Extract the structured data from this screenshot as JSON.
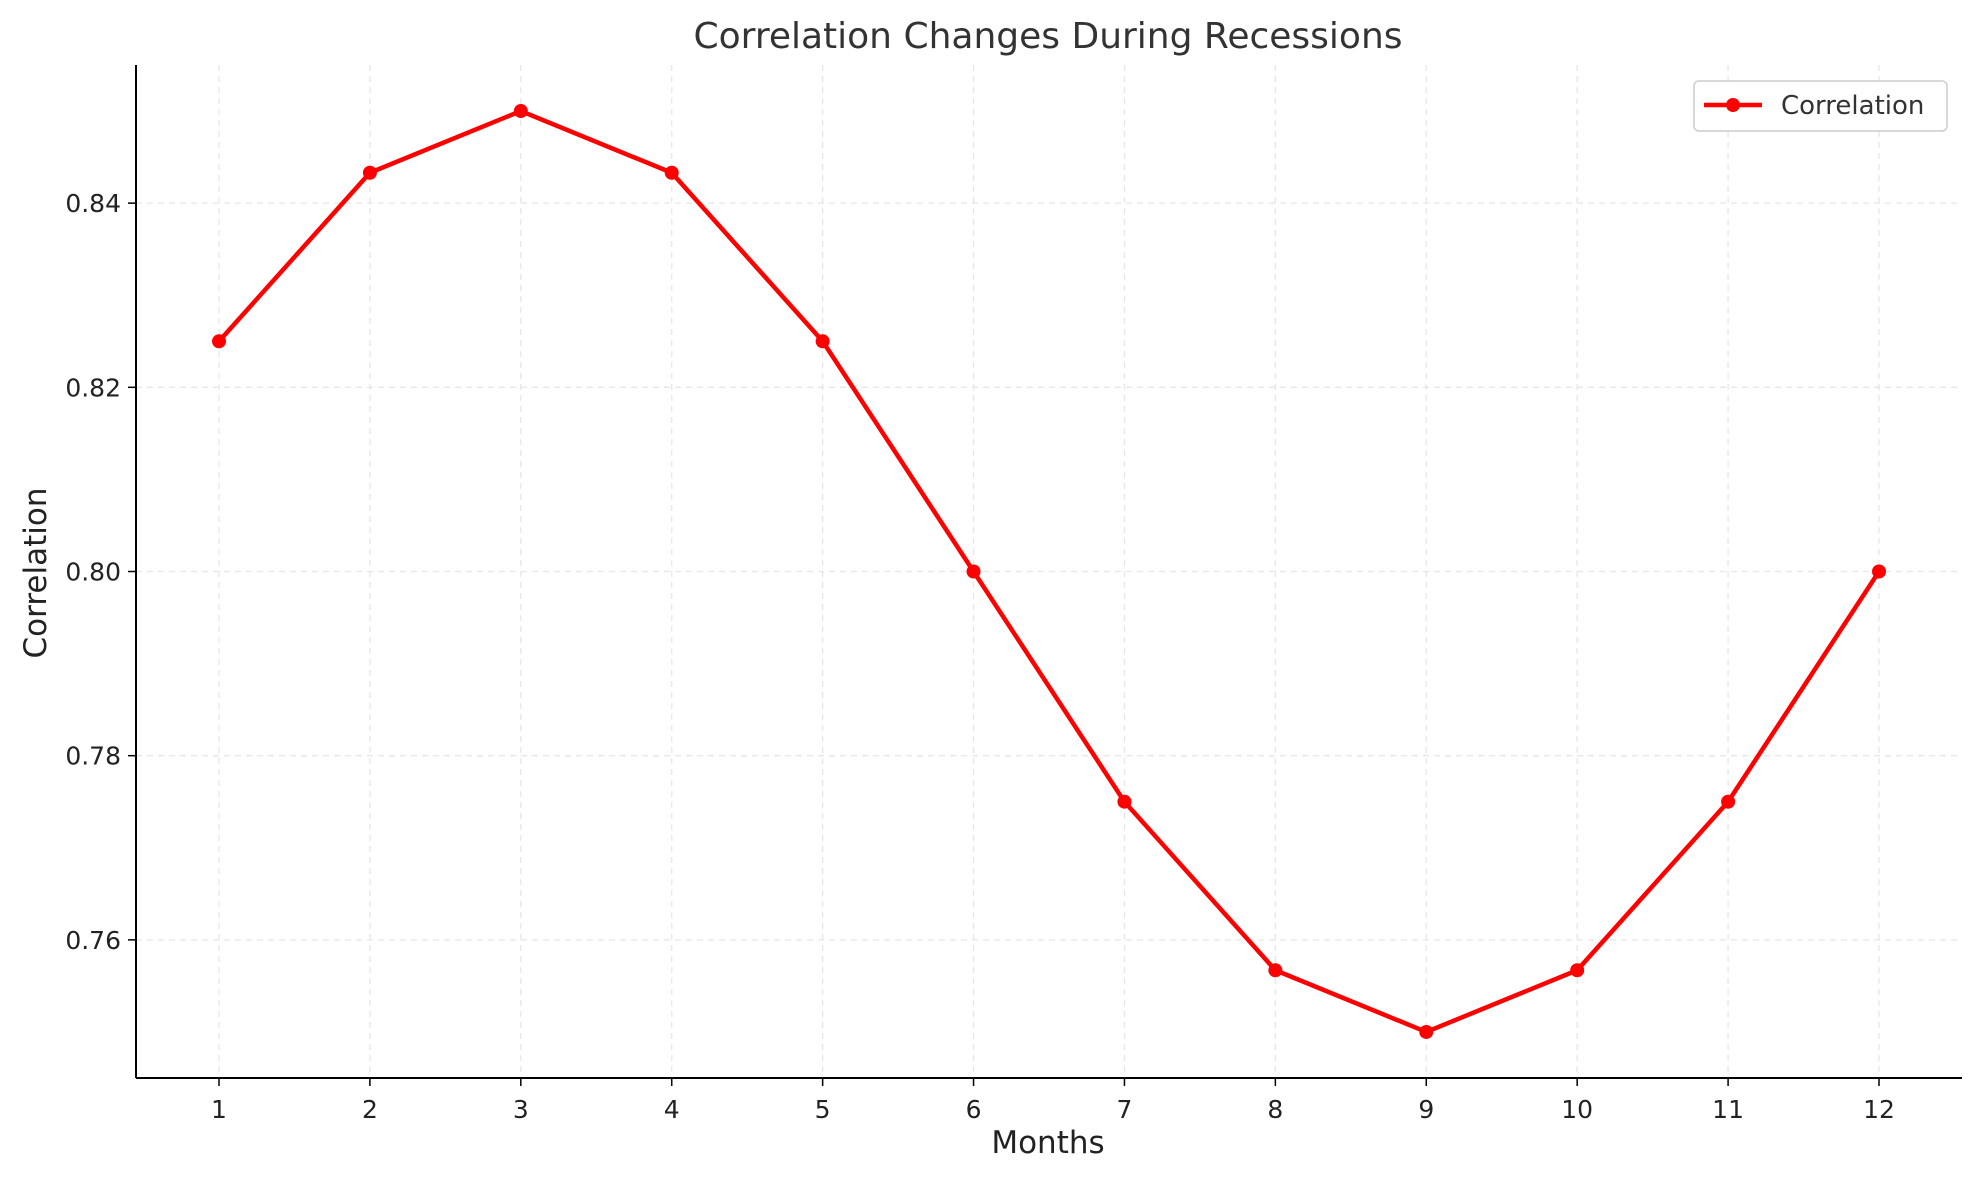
{
  "chart_data": {
    "type": "line",
    "title": "Correlation Changes During Recessions",
    "xlabel": "Months",
    "ylabel": "Correlation",
    "x": [
      1,
      2,
      3,
      4,
      5,
      6,
      7,
      8,
      9,
      10,
      11,
      12
    ],
    "x_tick_labels": [
      "1",
      "2",
      "3",
      "4",
      "5",
      "6",
      "7",
      "8",
      "9",
      "10",
      "11",
      "12"
    ],
    "xlim": [
      0.45,
      12.55
    ],
    "ylim": [
      0.745,
      0.855
    ],
    "y_ticks": [
      0.76,
      0.78,
      0.8,
      0.82,
      0.84
    ],
    "y_tick_labels": [
      "0.76",
      "0.78",
      "0.80",
      "0.82",
      "0.84"
    ],
    "series": [
      {
        "name": "Correlation",
        "color": "#ff0000",
        "marker": "circle",
        "values": [
          0.825,
          0.8433,
          0.85,
          0.8433,
          0.825,
          0.8,
          0.775,
          0.7567,
          0.75,
          0.7567,
          0.775,
          0.8
        ]
      }
    ],
    "grid": true,
    "grid_style": "dashed",
    "legend_position": "top-right"
  }
}
